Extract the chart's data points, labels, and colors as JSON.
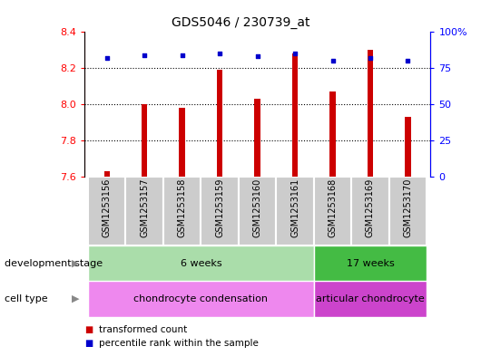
{
  "title": "GDS5046 / 230739_at",
  "samples": [
    "GSM1253156",
    "GSM1253157",
    "GSM1253158",
    "GSM1253159",
    "GSM1253160",
    "GSM1253161",
    "GSM1253168",
    "GSM1253169",
    "GSM1253170"
  ],
  "transformed_count": [
    7.63,
    8.0,
    7.98,
    8.19,
    8.03,
    8.28,
    8.07,
    8.3,
    7.93
  ],
  "percentile_rank": [
    82,
    84,
    84,
    85,
    83,
    85,
    80,
    82,
    80
  ],
  "ylim_left": [
    7.6,
    8.4
  ],
  "ylim_right": [
    0,
    100
  ],
  "yticks_left": [
    7.6,
    7.8,
    8.0,
    8.2,
    8.4
  ],
  "yticks_right": [
    0,
    25,
    50,
    75,
    100
  ],
  "bar_color": "#cc0000",
  "dot_color": "#0000cc",
  "bar_bottom": 7.6,
  "dotted_grid_values": [
    7.8,
    8.0,
    8.2
  ],
  "groups": [
    {
      "label": "6 weeks",
      "start": 0,
      "end": 5,
      "color": "#aaddaa"
    },
    {
      "label": "17 weeks",
      "start": 6,
      "end": 8,
      "color": "#44bb44"
    }
  ],
  "cell_types": [
    {
      "label": "chondrocyte condensation",
      "start": 0,
      "end": 5,
      "color": "#ee88ee"
    },
    {
      "label": "articular chondrocyte",
      "start": 6,
      "end": 8,
      "color": "#cc44cc"
    }
  ],
  "dev_stage_label": "development stage",
  "cell_type_label": "cell type",
  "legend_bar_label": "transformed count",
  "legend_dot_label": "percentile rank within the sample",
  "title_fontsize": 10,
  "tick_fontsize": 8,
  "label_fontsize": 8,
  "annot_fontsize": 8,
  "sample_fontsize": 7
}
